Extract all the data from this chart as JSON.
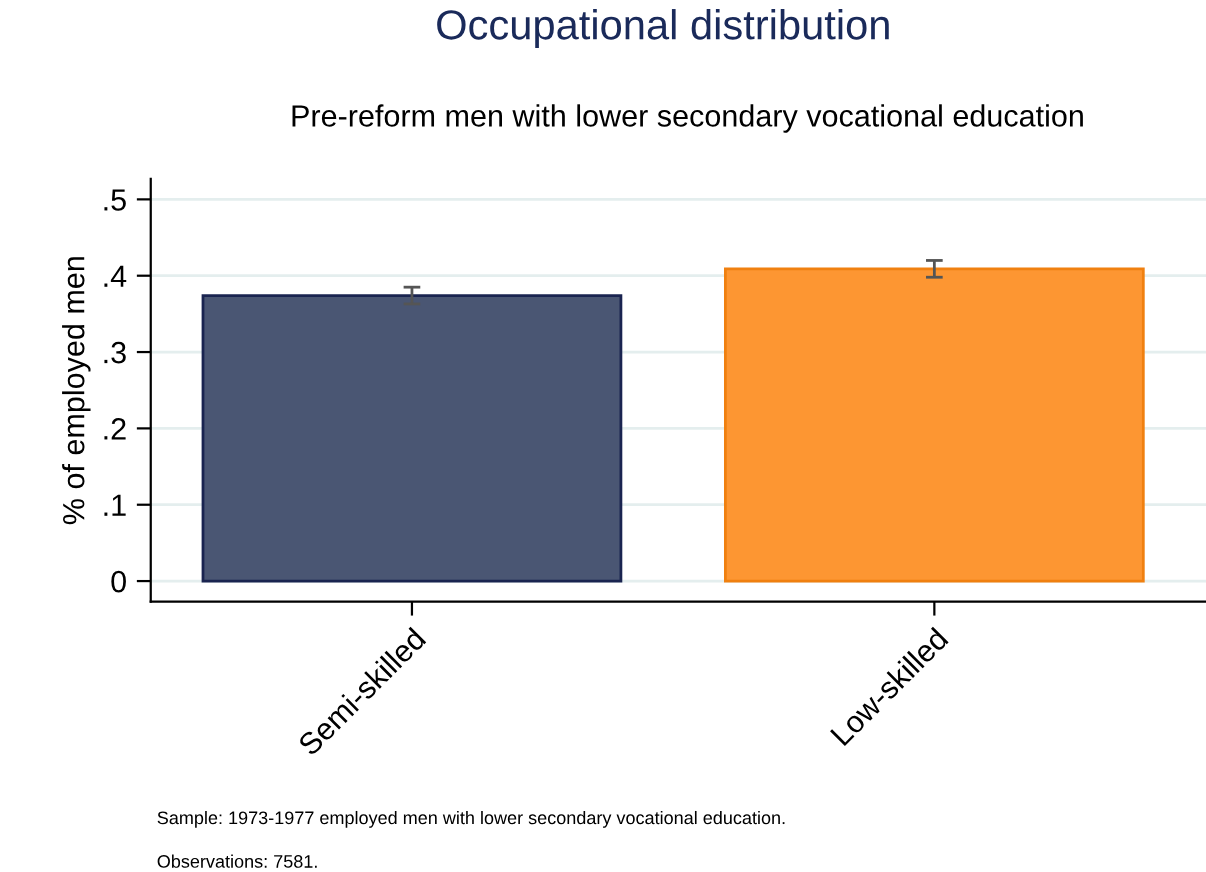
{
  "chart_data": {
    "type": "bar",
    "title": "Occupational distribution",
    "subtitle": "Pre-reform men with lower secondary vocational education",
    "ylabel": "% of employed men",
    "categories": [
      "Semi-skilled",
      "Low-skilled"
    ],
    "values": [
      0.374,
      0.409
    ],
    "colors": [
      "#4a5673",
      "#fd9632"
    ],
    "errors": [
      0.011,
      0.011
    ],
    "ylim": [
      -0.027,
      0.527
    ],
    "yticks": [
      {
        "value": 0,
        "label": "0"
      },
      {
        "value": 0.1,
        "label": ".1"
      },
      {
        "value": 0.2,
        "label": ".2"
      },
      {
        "value": 0.3,
        "label": ".3"
      },
      {
        "value": 0.4,
        "label": ".4"
      },
      {
        "value": 0.5,
        "label": ".5"
      }
    ],
    "grid": "y",
    "annotations": [
      "Sample: 1973-1977 employed men with lower secondary vocational education.",
      "Observations: 7581."
    ]
  }
}
